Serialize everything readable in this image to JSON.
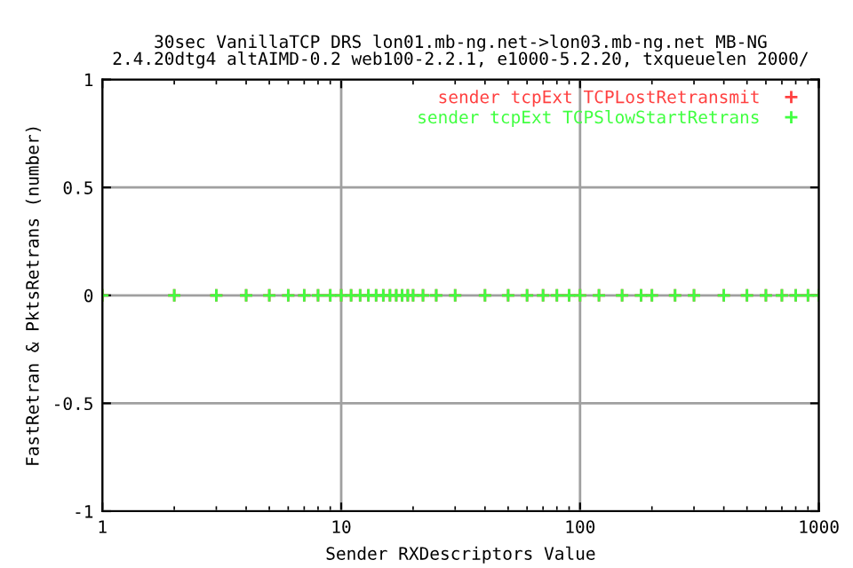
{
  "chart_data": {
    "type": "scatter",
    "title": "30sec VanillaTCP DRS lon01.mb-ng.net->lon03.mb-ng.net MB-NG\n2.4.20dtg4 altAIMD-0.2 web100-2.2.1, e1000-5.2.20, txqueuelen 2000/",
    "xlabel": "Sender RXDescriptors Value",
    "ylabel": "FastRetran & PktsRetrans (number)",
    "x": [
      1,
      2,
      3,
      4,
      5,
      6,
      7,
      8,
      9,
      10,
      11,
      12,
      13,
      14,
      15,
      16,
      17,
      18,
      19,
      20,
      22,
      25,
      30,
      40,
      50,
      60,
      70,
      80,
      90,
      100,
      120,
      150,
      180,
      200,
      250,
      300,
      400,
      500,
      600,
      700,
      800,
      900,
      1000
    ],
    "series": [
      {
        "name": "sender tcpExt TCPLostRetransmit",
        "color": "#ff4040",
        "values": [
          0,
          0,
          0,
          0,
          0,
          0,
          0,
          0,
          0,
          0,
          0,
          0,
          0,
          0,
          0,
          0,
          0,
          0,
          0,
          0,
          0,
          0,
          0,
          0,
          0,
          0,
          0,
          0,
          0,
          0,
          0,
          0,
          0,
          0,
          0,
          0,
          0,
          0,
          0,
          0,
          0,
          0,
          0
        ]
      },
      {
        "name": "sender tcpExt TCPSlowStartRetrans",
        "color": "#40ff40",
        "values": [
          0,
          0,
          0,
          0,
          0,
          0,
          0,
          0,
          0,
          0,
          0,
          0,
          0,
          0,
          0,
          0,
          0,
          0,
          0,
          0,
          0,
          0,
          0,
          0,
          0,
          0,
          0,
          0,
          0,
          0,
          0,
          0,
          0,
          0,
          0,
          0,
          0,
          0,
          0,
          0,
          0,
          0,
          0
        ]
      }
    ],
    "log": "x",
    "xlim": [
      1,
      1000
    ],
    "xticks": [
      1,
      10,
      100,
      1000
    ],
    "ylim": [
      -1,
      1
    ],
    "yticks": [
      -1,
      -0.5,
      0,
      0.5,
      1
    ],
    "grid": true,
    "legend": "top right",
    "marker": "cross"
  }
}
